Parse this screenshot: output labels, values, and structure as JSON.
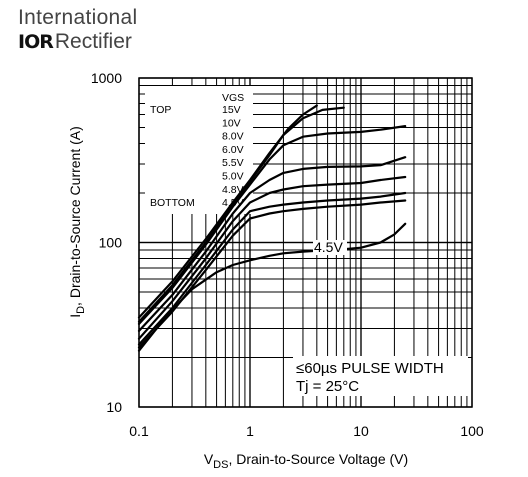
{
  "logo": {
    "line1": "International",
    "mark": "IOR",
    "line2": "Rectifier"
  },
  "chart_data": {
    "type": "line",
    "x_scale": "log",
    "y_scale": "log",
    "xlim": [
      0.1,
      100
    ],
    "ylim": [
      10,
      1000
    ],
    "grid": true,
    "x_ticks": [
      "0.1",
      "1",
      "10",
      "100"
    ],
    "y_ticks": [
      "10",
      "100",
      "1000"
    ],
    "xlabel": {
      "main": "V",
      "sub": "DS",
      "rest": ", Drain-to-Source Voltage (V)"
    },
    "ylabel": {
      "main": "I",
      "sub": "D",
      "rest": ", Drain-to-Source Current (A)"
    },
    "legend": {
      "header": "VGS",
      "top_label": "TOP",
      "bottom_label": "BOTTOM",
      "entries": [
        "15V",
        "10V",
        "8.0V",
        "6.0V",
        "5.5V",
        "5.0V",
        "4.8V",
        "4.5V"
      ]
    },
    "annotation": "4.5V",
    "note": {
      "line1": "≤60µs PULSE WIDTH",
      "line2": "Tj = 25°C"
    },
    "series": [
      {
        "name": "15V",
        "x": [
          0.1,
          0.2,
          0.4,
          0.7,
          1.0,
          1.5,
          2.2,
          3.0,
          4.0
        ],
        "y": [
          35,
          58,
          105,
          175,
          240,
          350,
          490,
          600,
          680
        ]
      },
      {
        "name": "10V",
        "x": [
          0.1,
          0.2,
          0.4,
          0.7,
          1.0,
          1.5,
          2.0,
          3.0,
          4.5,
          7.0
        ],
        "y": [
          33,
          55,
          100,
          170,
          235,
          340,
          450,
          570,
          640,
          660
        ]
      },
      {
        "name": "8.0V",
        "x": [
          0.1,
          0.2,
          0.4,
          0.7,
          1.0,
          1.5,
          2.0,
          3.0,
          5.0,
          10.0,
          15.0,
          25.0
        ],
        "y": [
          32,
          53,
          97,
          165,
          225,
          320,
          390,
          440,
          460,
          470,
          485,
          510
        ]
      },
      {
        "name": "6.0V",
        "x": [
          0.1,
          0.2,
          0.4,
          0.7,
          1.0,
          1.5,
          2.0,
          3.0,
          5.0,
          10.0,
          15.0,
          25.0
        ],
        "y": [
          29,
          48,
          88,
          150,
          200,
          240,
          265,
          280,
          288,
          290,
          295,
          330
        ]
      },
      {
        "name": "5.5V",
        "x": [
          0.1,
          0.2,
          0.4,
          0.7,
          1.0,
          1.5,
          2.0,
          3.0,
          5.0,
          10.0,
          15.0,
          25.0
        ],
        "y": [
          26,
          44,
          80,
          135,
          175,
          200,
          210,
          220,
          225,
          230,
          240,
          250
        ]
      },
      {
        "name": "5.0V",
        "x": [
          0.1,
          0.2,
          0.4,
          0.7,
          1.0,
          1.5,
          2.0,
          3.0,
          5.0,
          10.0,
          15.0,
          25.0
        ],
        "y": [
          24,
          40,
          73,
          120,
          155,
          165,
          170,
          175,
          180,
          185,
          190,
          200
        ]
      },
      {
        "name": "4.8V",
        "x": [
          0.1,
          0.2,
          0.4,
          0.7,
          1.0,
          1.5,
          2.0,
          3.0,
          5.0,
          10.0,
          15.0,
          25.0
        ],
        "y": [
          23,
          38,
          68,
          110,
          140,
          150,
          155,
          160,
          165,
          170,
          175,
          180
        ]
      },
      {
        "name": "4.5V",
        "x": [
          0.1,
          0.15,
          0.2,
          0.3,
          0.5,
          0.7,
          1.0,
          1.5,
          2.0,
          3.0,
          4.0,
          5.0,
          7.0,
          10.0,
          15.0,
          20.0,
          25.0
        ],
        "y": [
          22,
          31,
          39,
          52,
          66,
          73,
          78,
          83,
          86,
          88,
          89,
          90,
          91,
          93,
          100,
          112,
          130
        ]
      }
    ]
  }
}
